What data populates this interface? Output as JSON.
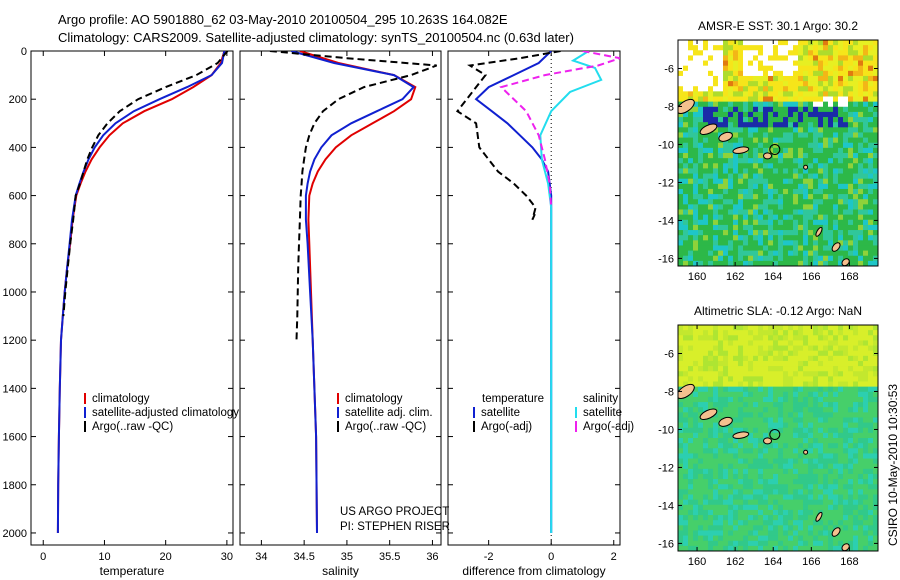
{
  "header": {
    "line1": "Argo profile: AO 5901880_62 03-May-2010 20100504_295 10.263S 164.082E",
    "line2": "Climatology: CARS2009. Satellite-adjusted climatology: synTS_20100504.nc (0.63d later)"
  },
  "colors": {
    "climatology": "#e00000",
    "satellite": "#1020d0",
    "argo": "#000000",
    "sal_satellite": "#22ddee",
    "sal_argo": "#ee22ee"
  },
  "project": {
    "line1": "US ARGO PROJECT",
    "line2": "PI: STEPHEN RISER"
  },
  "credit": "CSIRO 10-May-2010 10:30:53",
  "chart_data": [
    {
      "type": "line",
      "xlabel": "temperature",
      "ylabel": "",
      "xlim": [
        -2,
        31
      ],
      "ylim": [
        2050,
        0
      ],
      "y_inverted": true,
      "xticks": [
        0,
        10,
        20,
        30
      ],
      "yticks": [
        0,
        200,
        400,
        600,
        800,
        1000,
        1200,
        1400,
        1600,
        1800,
        2000
      ],
      "legend": [
        "climatology",
        "satellite-adjusted climatology",
        "Argo(..raw -QC)"
      ],
      "series": [
        {
          "name": "climatology",
          "color": "#e00000",
          "dash": "solid",
          "x": [
            29.6,
            29.0,
            27.5,
            24.5,
            21.0,
            16.5,
            13.0,
            10.8,
            9.2,
            7.9,
            6.9,
            6.1,
            5.4,
            4.8,
            4.4,
            3.9,
            3.5,
            3.2,
            2.9,
            2.7,
            2.55,
            2.45,
            2.4
          ],
          "y": [
            0,
            50,
            100,
            150,
            200,
            250,
            300,
            350,
            400,
            450,
            500,
            550,
            600,
            700,
            800,
            900,
            1000,
            1100,
            1200,
            1400,
            1600,
            1800,
            2000
          ]
        },
        {
          "name": "satellite-adjusted climatology",
          "color": "#1020d0",
          "dash": "solid",
          "x": [
            29.6,
            29.2,
            27.5,
            23.5,
            19.0,
            14.8,
            11.8,
            9.8,
            8.4,
            7.4,
            6.6,
            5.9,
            5.3,
            4.7,
            4.3,
            3.9,
            3.5,
            3.2,
            2.9,
            2.7,
            2.55,
            2.45,
            2.4
          ],
          "y": [
            0,
            50,
            100,
            150,
            200,
            250,
            300,
            350,
            400,
            450,
            500,
            550,
            600,
            700,
            800,
            900,
            1000,
            1100,
            1200,
            1400,
            1600,
            1800,
            2000
          ]
        },
        {
          "name": "Argo(..raw -QC)",
          "color": "#000000",
          "dash": "dashed",
          "x": [
            30.1,
            28.5,
            25.0,
            20.0,
            15.5,
            12.5,
            10.5,
            9.0,
            8.0,
            7.2,
            6.6,
            6.0,
            5.3,
            4.9,
            4.4,
            4.0,
            3.6,
            3.3
          ],
          "y": [
            0,
            50,
            100,
            150,
            200,
            250,
            300,
            350,
            400,
            450,
            500,
            550,
            600,
            700,
            800,
            900,
            1000,
            1100
          ]
        }
      ]
    },
    {
      "type": "line",
      "xlabel": "salinity",
      "ylabel": "",
      "xlim": [
        33.75,
        36.1
      ],
      "ylim": [
        2050,
        0
      ],
      "y_inverted": true,
      "xticks": [
        34,
        34.5,
        35,
        35.5,
        36
      ],
      "legend": [
        "climatology",
        "satellite adj. clim.",
        "Argo(..raw -QC)"
      ],
      "series": [
        {
          "name": "climatology",
          "color": "#e00000",
          "dash": "solid",
          "x": [
            34.45,
            34.9,
            35.55,
            35.8,
            35.75,
            35.55,
            35.3,
            35.05,
            34.87,
            34.75,
            34.66,
            34.6,
            34.56,
            34.55,
            34.56,
            34.58,
            34.6,
            34.62,
            34.64,
            34.65
          ],
          "y": [
            0,
            50,
            100,
            150,
            200,
            250,
            300,
            350,
            400,
            450,
            500,
            550,
            600,
            700,
            800,
            1000,
            1200,
            1400,
            1600,
            2000
          ]
        },
        {
          "name": "satellite adj. clim.",
          "color": "#1020d0",
          "dash": "solid",
          "x": [
            34.35,
            34.85,
            35.55,
            35.78,
            35.65,
            35.35,
            35.05,
            34.82,
            34.7,
            34.62,
            34.57,
            34.54,
            34.52,
            34.52,
            34.54,
            34.57,
            34.6,
            34.62,
            34.64,
            34.65
          ],
          "y": [
            0,
            50,
            100,
            150,
            200,
            250,
            300,
            350,
            400,
            450,
            500,
            550,
            600,
            700,
            800,
            1000,
            1200,
            1400,
            1600,
            2000
          ]
        },
        {
          "name": "Argo(..raw -QC)",
          "color": "#000000",
          "dash": "dashed",
          "x": [
            34.1,
            35.0,
            36.05,
            35.75,
            35.2,
            34.9,
            34.72,
            34.62,
            34.56,
            34.52,
            34.5,
            34.48,
            34.47,
            34.46,
            34.45,
            34.44,
            34.43,
            34.42,
            34.41
          ],
          "y": [
            0,
            30,
            60,
            100,
            150,
            200,
            250,
            300,
            350,
            400,
            450,
            500,
            550,
            600,
            700,
            800,
            900,
            1100,
            1200
          ]
        }
      ]
    },
    {
      "type": "line",
      "xlabel": "difference from climatology",
      "ylabel": "",
      "xlim": [
        -3.3,
        2.2
      ],
      "ylim": [
        2050,
        0
      ],
      "y_inverted": true,
      "xticks": [
        -2,
        0,
        2
      ],
      "legend": [
        "temperature",
        "satellite",
        "Argo(-adj)",
        "salinity",
        "satellite",
        "Argo(-adj)"
      ],
      "series": [
        {
          "name": "temperature satellite",
          "color": "#1020d0",
          "dash": "solid",
          "x": [
            0.0,
            -0.4,
            -1.2,
            -2.0,
            -2.4,
            -1.9,
            -1.4,
            -1.0,
            -0.6,
            -0.3,
            -0.1,
            0.0,
            0.0
          ],
          "y": [
            0,
            50,
            100,
            150,
            200,
            250,
            300,
            350,
            400,
            450,
            500,
            600,
            2000
          ]
        },
        {
          "name": "temperature Argo(-adj)",
          "color": "#000000",
          "dash": "dashed",
          "x": [
            0.3,
            -1.0,
            -2.6,
            -2.1,
            -3.0,
            -2.4,
            -2.3,
            -1.7,
            -1.2,
            -0.8,
            -0.5,
            -0.6,
            -0.5
          ],
          "y": [
            0,
            30,
            60,
            100,
            250,
            300,
            400,
            500,
            550,
            600,
            650,
            700,
            670
          ]
        },
        {
          "name": "salinity satellite",
          "color": "#22ddee",
          "dash": "solid",
          "x": [
            1.2,
            0.7,
            1.4,
            1.6,
            0.6,
            0.0,
            -0.35,
            -0.3,
            -0.1,
            0.0,
            0.0
          ],
          "y": [
            0,
            40,
            70,
            120,
            170,
            250,
            350,
            450,
            550,
            650,
            2000
          ]
        },
        {
          "name": "salinity Argo(-adj)",
          "color": "#ee22ee",
          "dash": "dashed",
          "x": [
            1.0,
            2.2,
            1.5,
            -0.2,
            -1.6,
            -0.8,
            -0.4,
            -0.2,
            -0.05,
            0.0
          ],
          "y": [
            0,
            30,
            60,
            100,
            150,
            250,
            350,
            450,
            550,
            650
          ]
        }
      ]
    },
    {
      "type": "heatmap",
      "title": "AMSR-E SST: 30.1 Argo: 30.2",
      "xlim": [
        159,
        169.5
      ],
      "ylim": [
        -16.4,
        -4.5
      ],
      "xticks": [
        160,
        162,
        164,
        166,
        168
      ],
      "yticks": [
        -6,
        -8,
        -10,
        -12,
        -14,
        -16
      ],
      "argo_position": {
        "lon": 164.082,
        "lat": -10.263
      }
    },
    {
      "type": "heatmap",
      "title": "Altimetric SLA: -0.12 Argo: NaN",
      "xlim": [
        159,
        169.5
      ],
      "ylim": [
        -16.4,
        -4.5
      ],
      "xticks": [
        160,
        162,
        164,
        166,
        168
      ],
      "yticks": [
        -6,
        -8,
        -10,
        -12,
        -14,
        -16
      ],
      "argo_position": {
        "lon": 164.082,
        "lat": -10.263
      }
    }
  ]
}
